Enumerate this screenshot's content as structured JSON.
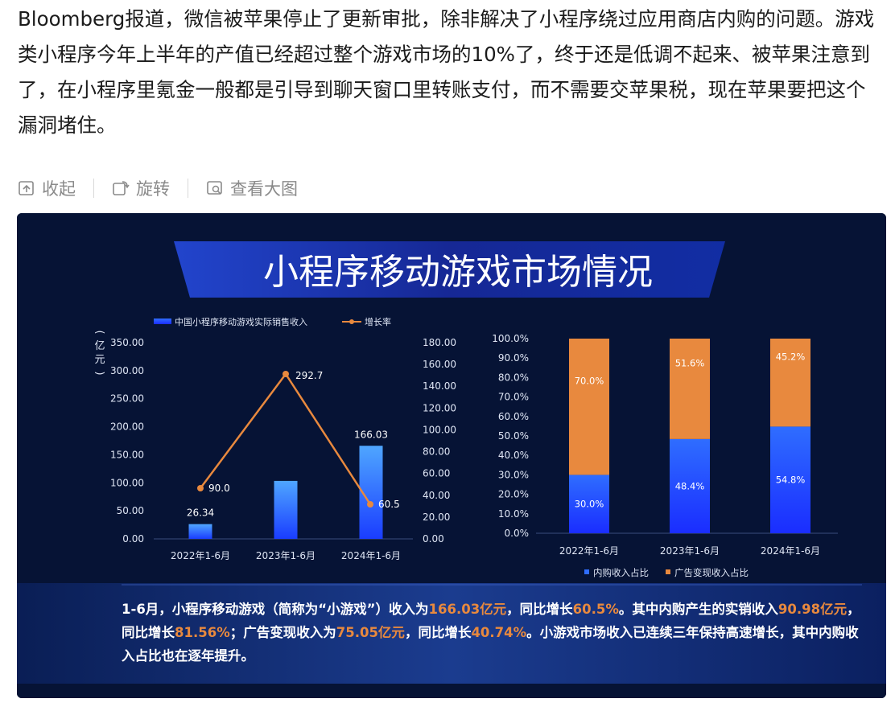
{
  "post": {
    "text": "Bloomberg报道，微信被苹果停止了更新审批，除非解决了小程序绕过应用商店内购的问题。游戏类小程序今年上半年的产值已经超过整个游戏市场的10%了，终于还是低调不起来、被苹果注意到了，在小程序里氪金一般都是引导到聊天窗口里转账支付，而不需要交苹果税，现在苹果要把这个漏洞堵住。"
  },
  "actions": {
    "collapse": "收起",
    "rotate": "旋转",
    "view_large": "查看大图"
  },
  "icons": {
    "collapse": "collapse-icon",
    "rotate": "rotate-icon",
    "view_large": "view-large-icon"
  },
  "colors": {
    "background": "#061335",
    "bar_blue": "#2f6dff",
    "orange": "#e8893e",
    "text_orange": "#e07a3a"
  },
  "figure": {
    "title": "小程序移动游戏市场情况",
    "caption": {
      "p1": "1-6月，小程序移动游戏（简称为“小游戏”）收入为",
      "h1": "166.03亿元",
      "p2": "，同比增长",
      "h2": "60.5%",
      "p3": "。其中内购产生的实销收入",
      "h3": "90.98亿元",
      "p4": "，同比增长",
      "h4": "81.56%",
      "p5": "；广告变现收入为",
      "h5": "75.05亿元",
      "p6": "，同比增长",
      "h6": "40.74%",
      "p7": "。小游戏市场收入已连续三年保持高速增长，其中内购收入占比也在逐年提升。"
    }
  },
  "chart_data": [
    {
      "type": "bar",
      "ylabel": "(亿元)",
      "categories": [
        "2022年1-6月",
        "2023年1-6月",
        "2024年1-6月"
      ],
      "series": [
        {
          "name": "中国小程序移动游戏实际销售收入",
          "type": "bar",
          "axis": "left",
          "values": [
            26.34,
            103.4,
            166.03
          ],
          "labels": [
            "26.34",
            "",
            "166.03"
          ]
        },
        {
          "name": "增长率",
          "type": "line",
          "axis": "right",
          "values": [
            90.0,
            292.7,
            60.5
          ],
          "labels": [
            "90.0",
            "292.7",
            "60.5"
          ]
        }
      ],
      "left_ticks": [
        "0.00",
        "50.00",
        "100.00",
        "150.00",
        "200.00",
        "250.00",
        "300.00",
        "350.00"
      ],
      "right_ticks": [
        "0.00",
        "20.00",
        "40.00",
        "60.00",
        "80.00",
        "100.00",
        "120.00",
        "140.00",
        "160.00",
        "180.00"
      ],
      "ylim_left": [
        0,
        350
      ],
      "ylim_right": [
        0,
        180
      ]
    },
    {
      "type": "bar",
      "stacked": true,
      "categories": [
        "2022年1-6月",
        "2023年1-6月",
        "2024年1-6月"
      ],
      "series": [
        {
          "name": "内购收入占比",
          "values": [
            30.0,
            48.4,
            54.8
          ],
          "labels": [
            "30.0%",
            "48.4%",
            "54.8%"
          ]
        },
        {
          "name": "广告变现收入占比",
          "values": [
            70.0,
            51.6,
            45.2
          ],
          "labels": [
            "70.0%",
            "51.6%",
            "45.2%"
          ]
        }
      ],
      "ticks": [
        "0.0%",
        "10.0%",
        "20.0%",
        "30.0%",
        "40.0%",
        "50.0%",
        "60.0%",
        "70.0%",
        "80.0%",
        "90.0%",
        "100.0%"
      ],
      "ylim": [
        0,
        100
      ],
      "legend": "bottom"
    }
  ]
}
